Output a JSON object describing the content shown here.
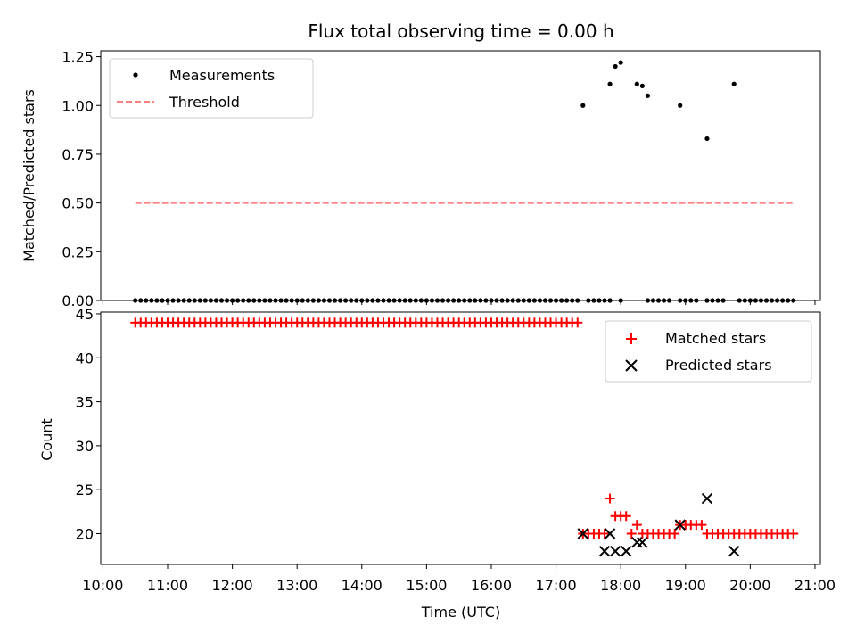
{
  "chart_data": {
    "type": "scatter",
    "title": "Flux total observing time = 0.00 h",
    "xlabel": "Time (UTC)",
    "x_ticks": [
      "10:00",
      "11:00",
      "12:00",
      "13:00",
      "14:00",
      "15:00",
      "16:00",
      "17:00",
      "18:00",
      "19:00",
      "20:00",
      "21:00"
    ],
    "x_range": [
      "10:00",
      "21:00"
    ],
    "panels": [
      {
        "ylabel": "Matched/Predicted stars",
        "ylim": [
          0,
          1.28
        ],
        "y_ticks": [
          "0.00",
          "0.25",
          "0.50",
          "0.75",
          "1.00",
          "1.25"
        ],
        "legend_position": "top-left",
        "series": [
          {
            "name": "Measurements",
            "marker": "dot",
            "color": "#000000",
            "zeros": {
              "start": "10:30",
              "end": "20:40",
              "step_minutes": 5,
              "value": 0,
              "exclude": [
                "17:25",
                "17:55",
                "18:05",
                "18:10",
                "18:15",
                "18:20",
                "18:50",
                "19:15",
                "19:40",
                "19:45"
              ]
            },
            "points": [
              [
                "17:25",
                1.0
              ],
              [
                "17:50",
                1.11
              ],
              [
                "17:55",
                1.2
              ],
              [
                "18:00",
                1.22
              ],
              [
                "18:15",
                1.11
              ],
              [
                "18:20",
                1.1
              ],
              [
                "18:25",
                1.05
              ],
              [
                "18:55",
                1.0
              ],
              [
                "19:20",
                0.83
              ],
              [
                "19:45",
                1.11
              ]
            ]
          },
          {
            "name": "Threshold",
            "marker": "dashed-line",
            "color": "#ff7f7f",
            "x": [
              "10:30",
              "20:40"
            ],
            "y": [
              0.5,
              0.5
            ]
          }
        ]
      },
      {
        "ylabel": "Count",
        "ylim": [
          16.5,
          45.2
        ],
        "y_ticks": [
          "20",
          "25",
          "30",
          "35",
          "40",
          "45"
        ],
        "legend_position": "top-right",
        "series": [
          {
            "name": "Matched stars",
            "marker": "plus",
            "color": "#ff0000",
            "runs": [
              {
                "start": "10:30",
                "end": "17:20",
                "step_minutes": 5,
                "value": 44
              },
              {
                "start": "17:25",
                "end": "17:45",
                "step_minutes": 5,
                "value": 20
              }
            ],
            "points": [
              [
                "17:50",
                24
              ],
              [
                "17:55",
                22
              ],
              [
                "18:00",
                22
              ],
              [
                "18:05",
                22
              ],
              [
                "18:10",
                20
              ],
              [
                "18:15",
                21
              ],
              [
                "18:20",
                20
              ],
              [
                "18:25",
                20
              ],
              [
                "18:30",
                20
              ],
              [
                "18:35",
                20
              ],
              [
                "18:40",
                20
              ],
              [
                "18:45",
                20
              ],
              [
                "18:50",
                20
              ],
              [
                "18:55",
                21
              ],
              [
                "19:00",
                21
              ],
              [
                "19:05",
                21
              ],
              [
                "19:10",
                21
              ],
              [
                "19:15",
                21
              ]
            ],
            "runs_after": [
              {
                "start": "19:20",
                "end": "20:40",
                "step_minutes": 5,
                "value": 20
              }
            ]
          },
          {
            "name": "Predicted stars",
            "marker": "cross",
            "color": "#000000",
            "points": [
              [
                "17:25",
                20
              ],
              [
                "17:45",
                18
              ],
              [
                "17:50",
                20
              ],
              [
                "17:55",
                18
              ],
              [
                "18:05",
                18
              ],
              [
                "18:15",
                19
              ],
              [
                "18:20",
                19
              ],
              [
                "18:55",
                21
              ],
              [
                "19:20",
                24
              ],
              [
                "19:45",
                18
              ]
            ]
          }
        ]
      }
    ]
  }
}
